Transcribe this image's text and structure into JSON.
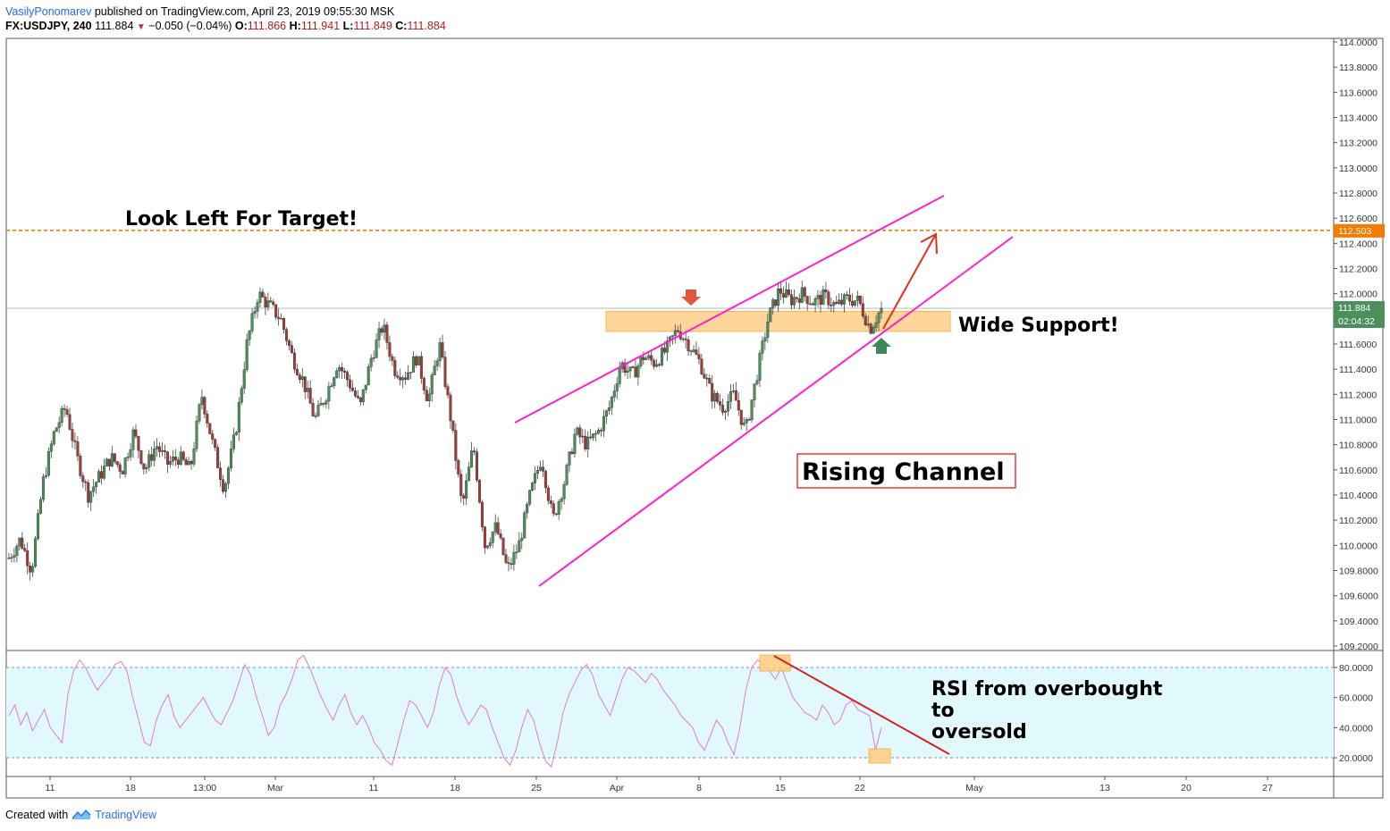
{
  "header": {
    "author": "VasilyPonomarev",
    "published": "published on TradingView.com, April 23, 2019 09:55:30 MSK",
    "symbol": "FX:USDJPY, 240",
    "last": "111.884",
    "change": "−0.050 (−0.04%)",
    "o_label": "O:",
    "o": "111.866",
    "h_label": "H:",
    "h": "111.941",
    "l_label": "L:",
    "l": "111.849",
    "c_label": "C:",
    "c": "111.884"
  },
  "footer": {
    "created": "Created with",
    "brand": "TradingView"
  },
  "colors": {
    "up": "#4a8f5c",
    "down": "#a33a3a",
    "channel": "#ff1fd0",
    "target": "#f57c00",
    "support": "#ffcc80",
    "rsi_band": "#e1f9fd",
    "rsi_line": "#e07ad0",
    "arrow_red": "#e03020",
    "arrow_green": "#3c8a5c"
  },
  "chart_data": [
    {
      "type": "candlestick",
      "symbol": "FX:USDJPY",
      "timeframe": "240",
      "ylim": [
        109.2,
        114.0
      ],
      "yticks": [
        "114.0000",
        "113.8000",
        "113.6000",
        "113.4000",
        "113.2000",
        "113.0000",
        "112.8000",
        "112.6000",
        "112.4000",
        "112.2000",
        "112.0000",
        "111.8000",
        "111.6000",
        "111.4000",
        "111.2000",
        "111.0000",
        "110.8000",
        "110.6000",
        "110.4000",
        "110.2000",
        "110.0000",
        "109.8000",
        "109.6000",
        "109.4000",
        "109.2000"
      ],
      "xticks": [
        "11",
        "18",
        "13:00",
        "Mar",
        "11",
        "18",
        "25",
        "Apr",
        "8",
        "15",
        "22",
        "May",
        "13",
        "20",
        "27"
      ],
      "last_price": 111.884,
      "last_price_label": "111.884",
      "countdown_label": "02:04:32",
      "target_level": 112.503,
      "target_label": "112.503",
      "support_zone": [
        111.7,
        111.86
      ],
      "price_path": [
        109.9,
        110.05,
        109.8,
        110.5,
        110.9,
        111.1,
        110.7,
        110.4,
        110.55,
        110.7,
        110.6,
        110.9,
        110.6,
        110.8,
        110.65,
        110.7,
        110.6,
        111.2,
        110.8,
        110.45,
        110.9,
        111.6,
        112.0,
        111.9,
        111.8,
        111.5,
        111.3,
        111.0,
        111.2,
        111.45,
        111.3,
        111.1,
        111.5,
        111.75,
        111.4,
        111.35,
        111.5,
        111.15,
        111.6,
        111.0,
        110.3,
        110.8,
        110.0,
        110.15,
        109.8,
        110.0,
        110.4,
        110.7,
        110.2,
        110.5,
        110.9,
        110.8,
        110.9,
        111.1,
        111.45,
        111.35,
        111.5,
        111.45,
        111.55,
        111.72,
        111.6,
        111.45,
        111.2,
        111.1,
        111.2,
        110.9,
        111.35,
        111.8,
        112.03,
        111.95,
        112.0,
        111.93,
        111.98,
        111.9,
        111.96,
        111.94,
        111.72,
        111.884
      ],
      "annotations": [
        "Look Left For Target!",
        "Wide Support!",
        "Rising Channel"
      ]
    },
    {
      "type": "line",
      "name": "",
      "ylim": [
        10,
        90
      ],
      "yticks": [
        "80.0000",
        "60.0000",
        "40.0000",
        "20.0000"
      ],
      "band": [
        20,
        80
      ],
      "values": [
        48,
        55,
        42,
        50,
        38,
        45,
        52,
        40,
        35,
        30,
        62,
        78,
        85,
        80,
        72,
        65,
        70,
        75,
        82,
        84,
        78,
        60,
        45,
        30,
        28,
        45,
        55,
        62,
        48,
        40,
        45,
        50,
        55,
        60,
        52,
        45,
        42,
        50,
        58,
        70,
        82,
        75,
        60,
        48,
        35,
        40,
        55,
        62,
        72,
        85,
        88,
        80,
        70,
        60,
        52,
        45,
        55,
        62,
        50,
        42,
        48,
        40,
        30,
        25,
        18,
        15,
        30,
        45,
        58,
        55,
        48,
        40,
        50,
        68,
        80,
        75,
        60,
        50,
        42,
        48,
        55,
        52,
        40,
        30,
        20,
        15,
        25,
        40,
        52,
        45,
        30,
        18,
        14,
        30,
        50,
        62,
        70,
        78,
        82,
        75,
        62,
        55,
        48,
        60,
        72,
        80,
        78,
        74,
        70,
        76,
        72,
        65,
        60,
        55,
        48,
        44,
        40,
        30,
        25,
        35,
        45,
        40,
        30,
        22,
        40,
        65,
        80,
        85,
        82,
        78,
        72,
        80,
        70,
        60,
        55,
        50,
        48,
        45,
        55,
        50,
        42,
        45,
        55,
        58,
        52,
        50,
        48,
        25,
        40
      ],
      "annotations": [
        "RSI from overbought to oversold"
      ]
    }
  ]
}
